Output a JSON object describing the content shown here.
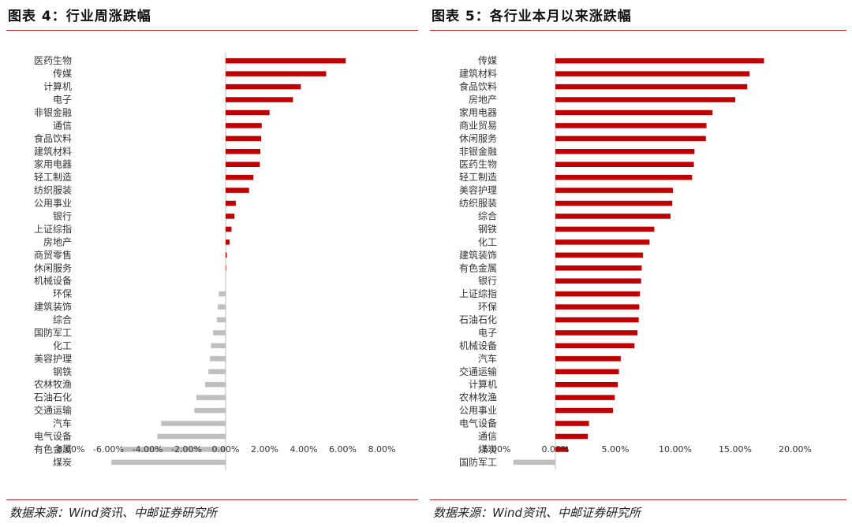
{
  "colors": {
    "positive": "#c00000",
    "negative": "#bfbfbf",
    "accent": "#c0262c"
  },
  "figures": [
    {
      "title": "图表 4：行业周涨跌幅",
      "source": "数据来源：Wind资讯、中邮证券研究所"
    },
    {
      "title": "图表 5：各行业本月以来涨跌幅",
      "source": "数据来源：Wind资讯、中邮证券研究所"
    }
  ],
  "chart_data": [
    {
      "type": "bar",
      "orientation": "horizontal",
      "title": "",
      "xlabel": "",
      "ylabel": "",
      "xlim": [
        -8,
        8
      ],
      "ticks": [
        -8,
        -6,
        -4,
        -2,
        0,
        2,
        4,
        6,
        8
      ],
      "tick_labels": [
        "-8.00%",
        "-6.00%",
        "-4.00%",
        "-2.00%",
        "0.00%",
        "2.00%",
        "4.00%",
        "6.00%",
        "8.00%"
      ],
      "grid": false,
      "legend": "none",
      "categories": [
        "医药生物",
        "传媒",
        "计算机",
        "电子",
        "非银金融",
        "通信",
        "食品饮料",
        "建筑材料",
        "家用电器",
        "轻工制造",
        "纺织服装",
        "公用事业",
        "银行",
        "上证综指",
        "房地产",
        "商贸零售",
        "休闲服务",
        "机械设备",
        "环保",
        "建筑装饰",
        "综合",
        "国防军工",
        "化工",
        "美容护理",
        "钢铁",
        "农林牧渔",
        "石油石化",
        "交通运输",
        "汽车",
        "电气设备",
        "有色金属",
        "煤炭"
      ],
      "values": [
        6.15,
        5.15,
        3.85,
        3.45,
        2.25,
        1.85,
        1.82,
        1.78,
        1.75,
        1.42,
        1.2,
        0.52,
        0.45,
        0.3,
        0.2,
        0.06,
        0.01,
        -0.02,
        -0.35,
        -0.4,
        -0.45,
        -0.65,
        -0.75,
        -0.8,
        -0.88,
        -1.05,
        -1.5,
        -1.6,
        -3.3,
        -3.5,
        -5.35,
        -5.85
      ]
    },
    {
      "type": "bar",
      "orientation": "horizontal",
      "title": "",
      "xlabel": "",
      "ylabel": "",
      "xlim": [
        -5,
        20
      ],
      "ticks": [
        -5,
        0,
        5,
        10,
        15,
        20
      ],
      "tick_labels": [
        "-5.00%",
        "0.00%",
        "5.00%",
        "10.00%",
        "15.00%",
        "20.00%"
      ],
      "grid": false,
      "legend": "none",
      "categories": [
        "传媒",
        "建筑材料",
        "食品饮料",
        "房地产",
        "家用电器",
        "商业贸易",
        "休闲服务",
        "非银金融",
        "医药生物",
        "轻工制造",
        "美容护理",
        "纺织服装",
        "综合",
        "钢铁",
        "化工",
        "建筑装饰",
        "有色金属",
        "银行",
        "上证综指",
        "环保",
        "石油石化",
        "电子",
        "机械设备",
        "汽车",
        "交通运输",
        "计算机",
        "农林牧渔",
        "公用事业",
        "电气设备",
        "通信",
        "煤炭",
        "国防军工"
      ],
      "values": [
        17.4,
        16.2,
        16.0,
        15.0,
        13.1,
        12.6,
        12.55,
        11.6,
        11.55,
        11.4,
        9.8,
        9.75,
        9.6,
        8.25,
        7.85,
        7.3,
        7.2,
        7.15,
        7.05,
        7.0,
        6.95,
        6.85,
        6.6,
        5.45,
        5.3,
        5.2,
        4.95,
        4.8,
        2.8,
        2.7,
        1.05,
        -3.5
      ]
    }
  ]
}
